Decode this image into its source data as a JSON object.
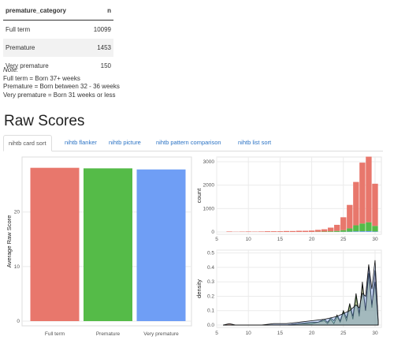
{
  "table": {
    "headers": [
      "premature_category",
      "n"
    ],
    "rows": [
      {
        "category": "Full term",
        "n": "10099"
      },
      {
        "category": "Premature",
        "n": "1453"
      },
      {
        "category": "Very premature",
        "n": "150"
      }
    ]
  },
  "note": {
    "label": "Note:",
    "lines": [
      "Full term = Born 37+ weeks",
      "Premature = Born between 32 - 36 weeks",
      "Very premature = Born 31 weeks or less"
    ]
  },
  "section_title": "Raw Scores",
  "tabs": [
    "nihtb card sort",
    "nihtb flanker",
    "nihtb picture",
    "nihtb pattern comparison",
    "nihtb list sort"
  ],
  "active_tab": 0,
  "colors": {
    "full_term": "#e8776c",
    "premature": "#55bb48",
    "very_premature": "#6f9ef5",
    "accent": "#2a72c4"
  },
  "chart_data": [
    {
      "type": "bar",
      "categories": [
        "Full term",
        "Premature",
        "Very premature"
      ],
      "values": [
        28.1,
        28.0,
        27.8
      ],
      "ylabel": "Average Raw Score",
      "xlabel": "",
      "ylim": [
        0,
        29.5
      ],
      "yticks": [
        "0",
        "10",
        "20"
      ],
      "grid": true
    },
    {
      "type": "bar",
      "ylabel": "count",
      "xlabel": "",
      "xlim": [
        5,
        31
      ],
      "ylim": [
        0,
        3200
      ],
      "xticks": [
        "5",
        "10",
        "15",
        "20",
        "25",
        "30"
      ],
      "yticks": [
        "0",
        "1000",
        "2000",
        "3000"
      ],
      "x": [
        7,
        8,
        9,
        10,
        11,
        12,
        13,
        14,
        15,
        16,
        17,
        18,
        19,
        20,
        21,
        22,
        23,
        24,
        25,
        26,
        27,
        28,
        29,
        30
      ],
      "series": [
        {
          "name": "Full term",
          "values": [
            20,
            10,
            15,
            20,
            15,
            20,
            30,
            30,
            30,
            40,
            40,
            50,
            50,
            60,
            80,
            100,
            160,
            260,
            550,
            1000,
            1850,
            2600,
            2800,
            1800
          ]
        },
        {
          "name": "Premature",
          "values": [
            0,
            0,
            0,
            0,
            0,
            0,
            0,
            0,
            0,
            0,
            0,
            0,
            0,
            0,
            10,
            15,
            25,
            40,
            70,
            140,
            260,
            330,
            380,
            240
          ]
        },
        {
          "name": "Very premature",
          "values": [
            0,
            0,
            0,
            0,
            0,
            0,
            0,
            0,
            0,
            0,
            0,
            0,
            0,
            0,
            0,
            0,
            0,
            5,
            8,
            15,
            25,
            30,
            35,
            20
          ]
        }
      ]
    },
    {
      "type": "area",
      "ylabel": "density",
      "xlabel": "",
      "xlim": [
        5,
        31
      ],
      "ylim": [
        0,
        0.52
      ],
      "xticks": [
        "5",
        "10",
        "15",
        "20",
        "25",
        "30"
      ],
      "yticks": [
        "0.0",
        "0.1",
        "0.2",
        "0.3",
        "0.4",
        "0.5"
      ],
      "series": [
        {
          "name": "Full term",
          "x": [
            6,
            7,
            8,
            10,
            12,
            14,
            16,
            18,
            20,
            21,
            22,
            22.5,
            23,
            23.5,
            24,
            24.5,
            25,
            25.5,
            26,
            26.5,
            27,
            27.5,
            28,
            28.5,
            29,
            29.5,
            30,
            30.5
          ],
          "values": [
            0.0,
            0.01,
            0.0,
            0.0,
            0.0,
            0.0,
            0.0,
            0.01,
            0.01,
            0.02,
            0.03,
            0.01,
            0.04,
            0.01,
            0.06,
            0.02,
            0.09,
            0.03,
            0.14,
            0.04,
            0.2,
            0.06,
            0.3,
            0.1,
            0.42,
            0.12,
            0.38,
            0.02
          ]
        },
        {
          "name": "Premature",
          "x": [
            6,
            8,
            10,
            12,
            14,
            16,
            18,
            20,
            21,
            22,
            22.5,
            23,
            23.5,
            24,
            24.5,
            25,
            25.5,
            26,
            26.5,
            27,
            27.5,
            28,
            28.5,
            29,
            29.5,
            30,
            30.5
          ],
          "values": [
            0.0,
            0.0,
            0.0,
            0.0,
            0.0,
            0.0,
            0.01,
            0.02,
            0.02,
            0.04,
            0.02,
            0.05,
            0.03,
            0.07,
            0.03,
            0.1,
            0.05,
            0.15,
            0.06,
            0.22,
            0.08,
            0.28,
            0.1,
            0.36,
            0.14,
            0.3,
            0.02
          ]
        },
        {
          "name": "Very premature",
          "x": [
            6,
            8,
            10,
            12,
            14,
            16,
            18,
            20,
            22,
            23,
            24,
            25,
            26,
            27,
            27.5,
            28,
            28.5,
            29,
            29.5,
            30,
            30.5
          ],
          "values": [
            0.0,
            0.0,
            0.0,
            0.0,
            0.01,
            0.01,
            0.02,
            0.03,
            0.04,
            0.05,
            0.06,
            0.08,
            0.1,
            0.14,
            0.12,
            0.22,
            0.2,
            0.42,
            0.25,
            0.45,
            0.03
          ]
        }
      ]
    }
  ]
}
